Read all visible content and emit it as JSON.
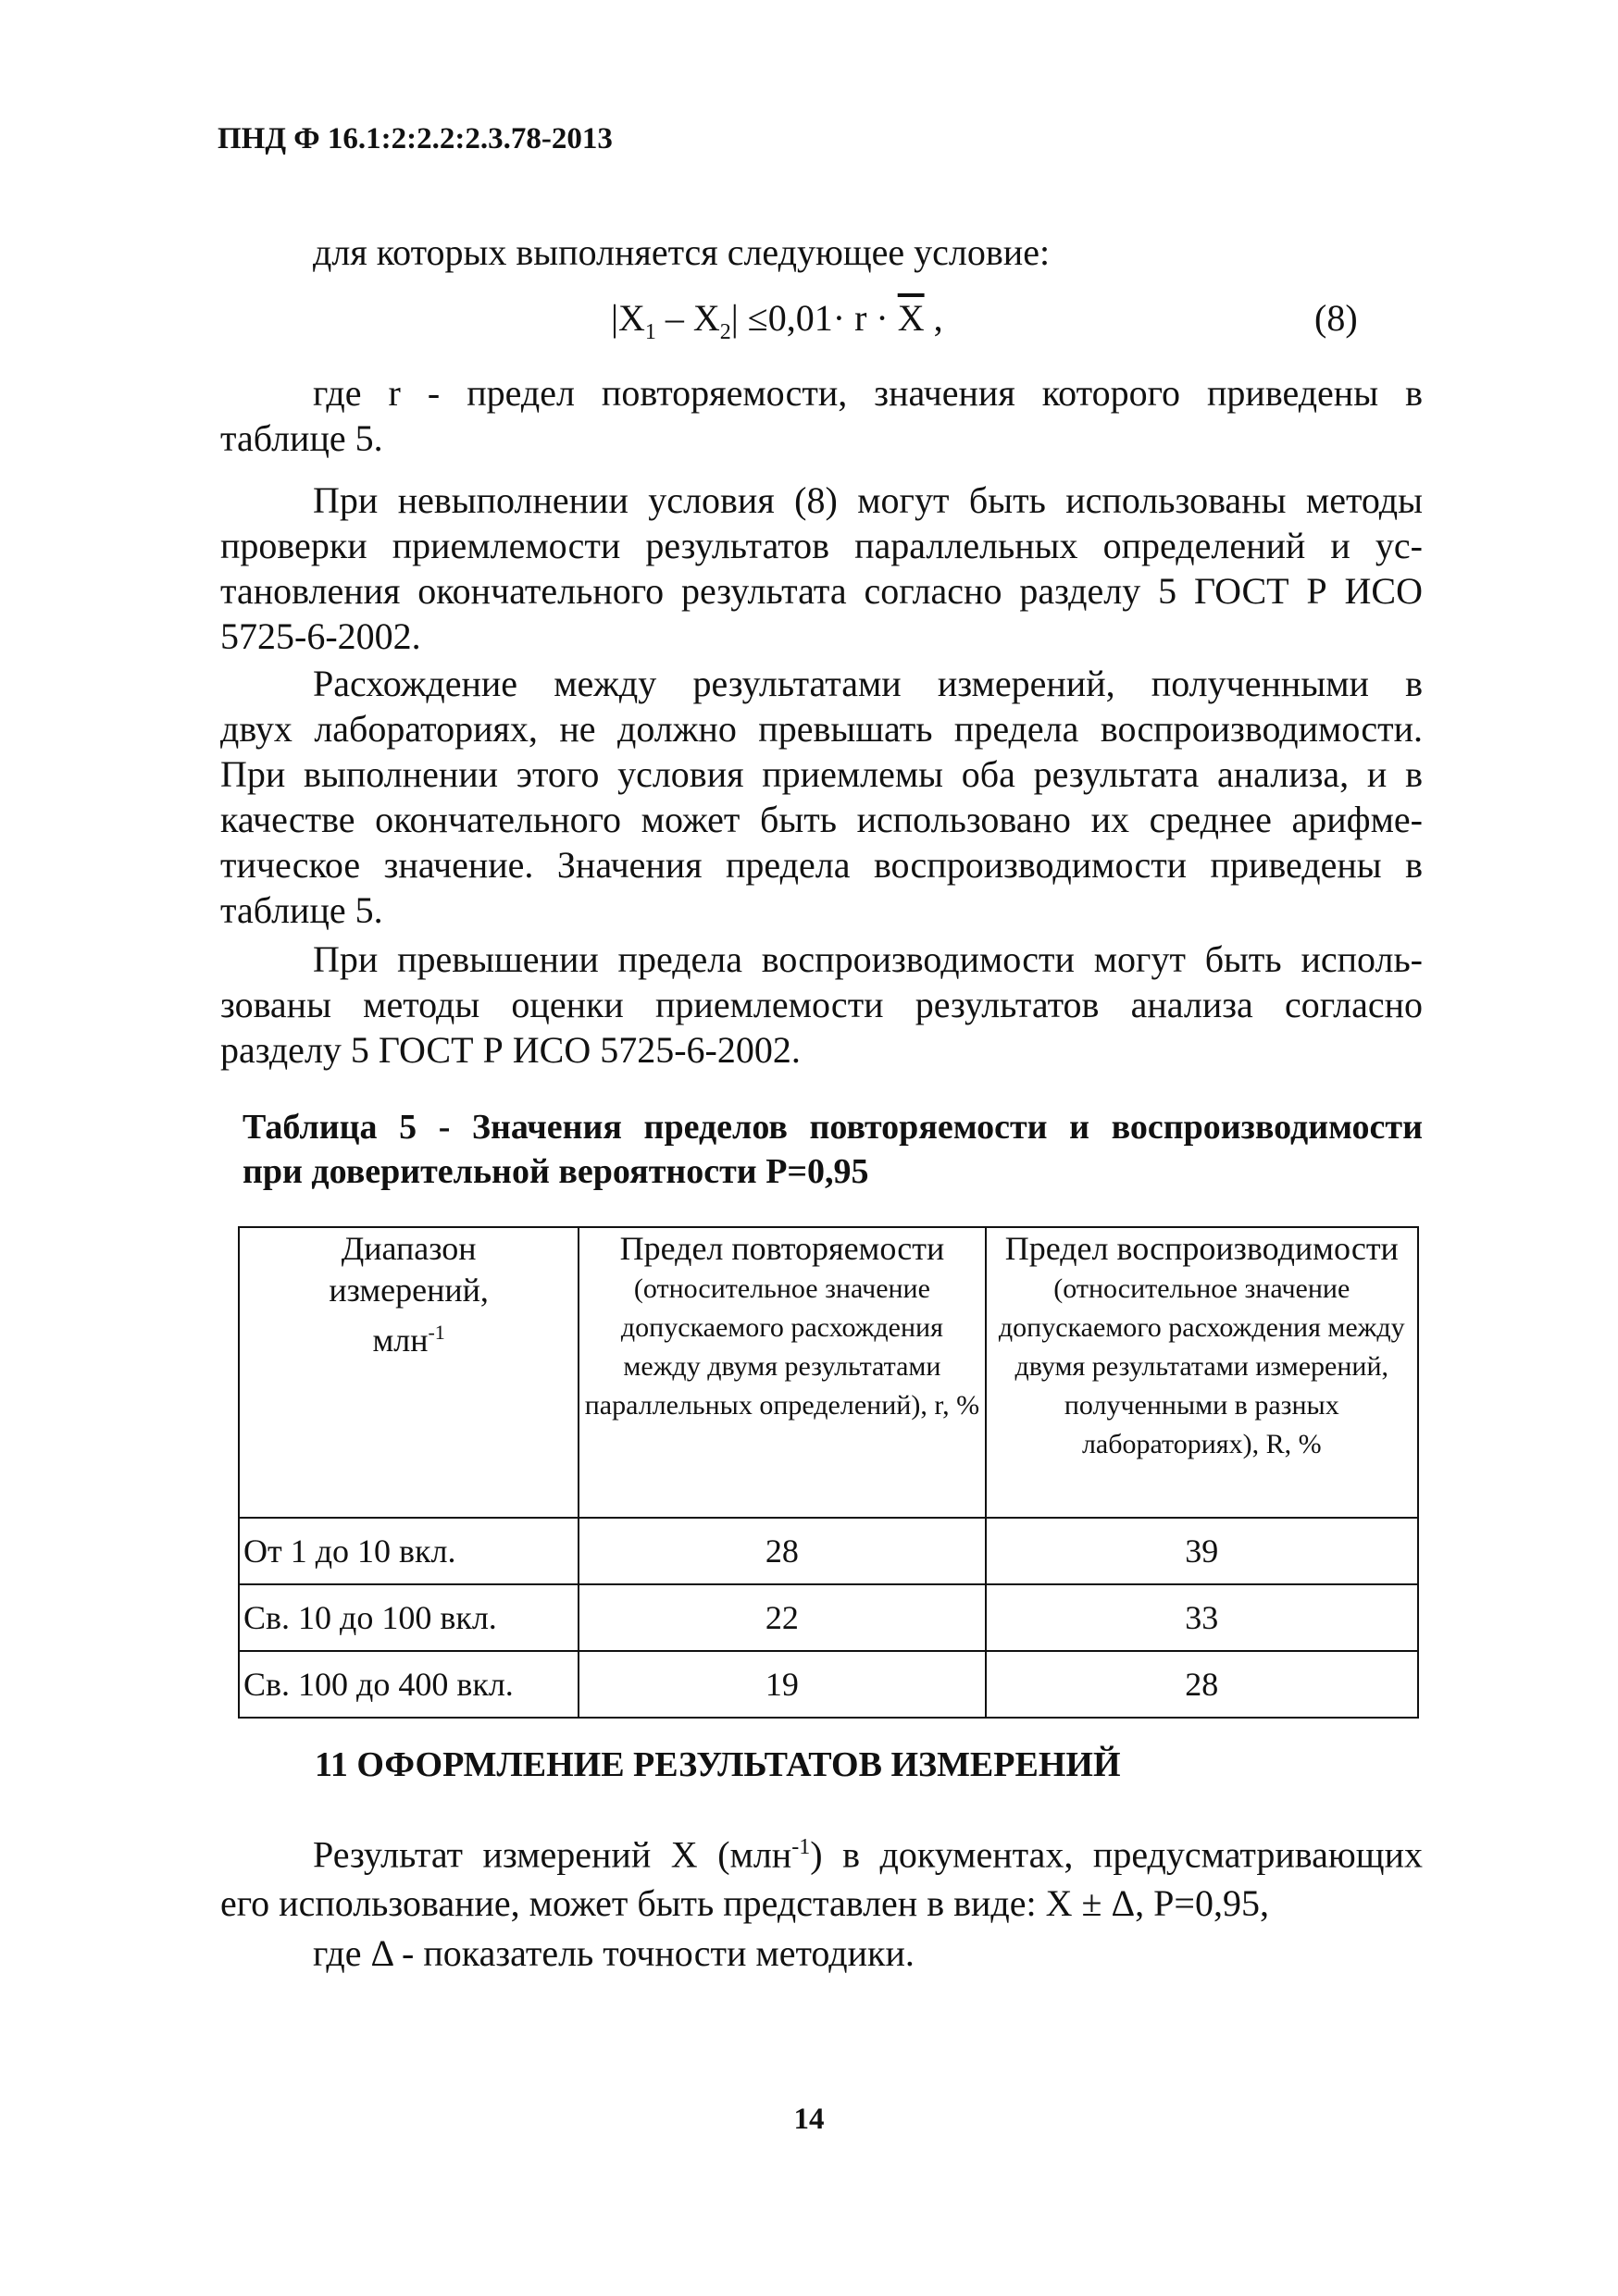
{
  "header": "ПНД Ф 16.1:2:2.2:2.3.78-2013",
  "p1": [
    "для которых выполняется следующее условие:"
  ],
  "formula": {
    "lhs": "|X",
    "s1": "1",
    "mid": " – X",
    "s2": "2",
    "rhs": "| ≤0,01· r · ",
    "xbar": "X",
    "end": " ,",
    "num": "(8)"
  },
  "p2": [
    "где r  - предел повторяемости, значения которого приведены в",
    "таблице 5."
  ],
  "p3": [
    "При невыполнении условия (8) могут быть использованы методы",
    "проверки приемлемости результатов параллельных определений и ус-",
    "тановления окончательного результата согласно разделу 5 ГОСТ Р ИСО",
    "5725-6-2002."
  ],
  "p4": [
    "Расхождение между результатами измерений, полученными в",
    "двух лабораториях, не должно превышать предела воспроизводимости.",
    "При выполнении этого условия приемлемы оба результата анализа, и в",
    "качестве окончательного может быть использовано их среднее арифме-",
    "тическое значение. Значения предела воспроизводимости приведены в",
    "таблице 5."
  ],
  "p5": [
    "При превышении предела воспроизводимости могут быть исполь-",
    "зованы методы оценки приемлемости результатов анализа согласно",
    "разделу 5 ГОСТ Р ИСО 5725-6-2002."
  ],
  "table_title": [
    "Таблица 5 - Значения пределов повторяемости и воспроизводимости",
    "при доверительной вероятности Р=0,95"
  ],
  "table": {
    "h1a": "Диапазон",
    "h1b": "измерений,",
    "h1c": "млн",
    "h1sup": "-1",
    "h2a": "Предел повторяемости",
    "h2b": "(относительное значение допускаемого расхождения между двумя результатами параллельных определений), r, %",
    "h3a": "Предел воспроизводимости",
    "h3b": "(относительное значение допускаемого расхождения между двумя результатами измерений, полученными в разных лабораториях), R, %",
    "rows": [
      [
        "От 1 до 10 вкл.",
        "28",
        "39"
      ],
      [
        "Св. 10 до 100 вкл.",
        "22",
        "33"
      ],
      [
        "Св. 100 до 400 вкл.",
        "19",
        "28"
      ]
    ]
  },
  "section_heading": "11 ОФОРМЛЕНИЕ РЕЗУЛЬТАТОВ ИЗМЕРЕНИЙ",
  "p6": {
    "a": "Результат измерений Х (млн",
    "sup": "-1",
    "b": ") в документах, предусматривающих",
    "l2": "его использование, может быть представлен в виде: Х ± Δ, Р=0,95,",
    "l3": "где Δ - показатель точности методики."
  },
  "page_number": "14"
}
